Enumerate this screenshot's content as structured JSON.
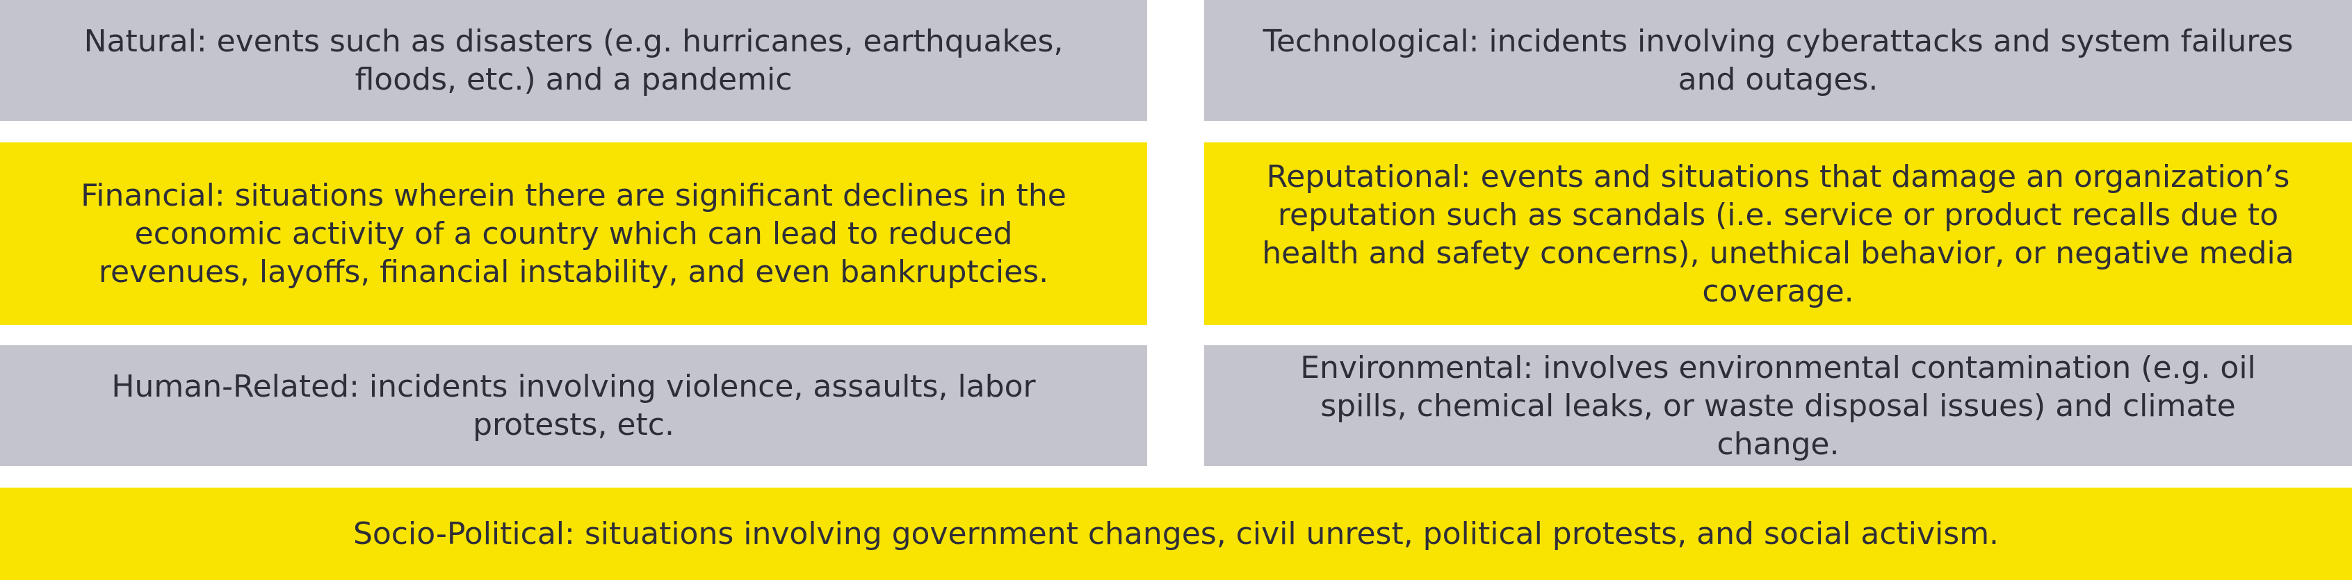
{
  "categories": [
    {
      "id": "natural",
      "text": "Natural: events such as disasters (e.g. hurricanes, earthquakes, floods, etc.) and a pandemic",
      "color": "#c4c4cd"
    },
    {
      "id": "technological",
      "text": "Technological: incidents involving cyberattacks and system failures and outages.",
      "color": "#c4c4cd"
    },
    {
      "id": "financial",
      "text": "Financial: situations wherein there are significant declines in the economic activity of a country which can lead to reduced revenues, layoffs, financial instability, and even bankruptcies.",
      "color": "#f8e400"
    },
    {
      "id": "reputational",
      "text": "Reputational: events and situations that damage an organization’s reputation such as scandals (i.e. service or product recalls due to health and safety concerns), unethical behavior, or negative media coverage.",
      "color": "#f8e400"
    },
    {
      "id": "human",
      "text": "Human-Related: incidents involving violence, assaults, labor protests, etc.",
      "color": "#c4c4cd"
    },
    {
      "id": "environmental",
      "text": "Environmental: involves environmental contamination (e.g. oil spills, chemical leaks, or waste disposal issues) and climate change.",
      "color": "#c4c4cd"
    },
    {
      "id": "sociopolitical",
      "text": "Socio-Political: situations involving government changes, civil unrest, political protests, and social activism.",
      "color": "#f8e400"
    }
  ]
}
